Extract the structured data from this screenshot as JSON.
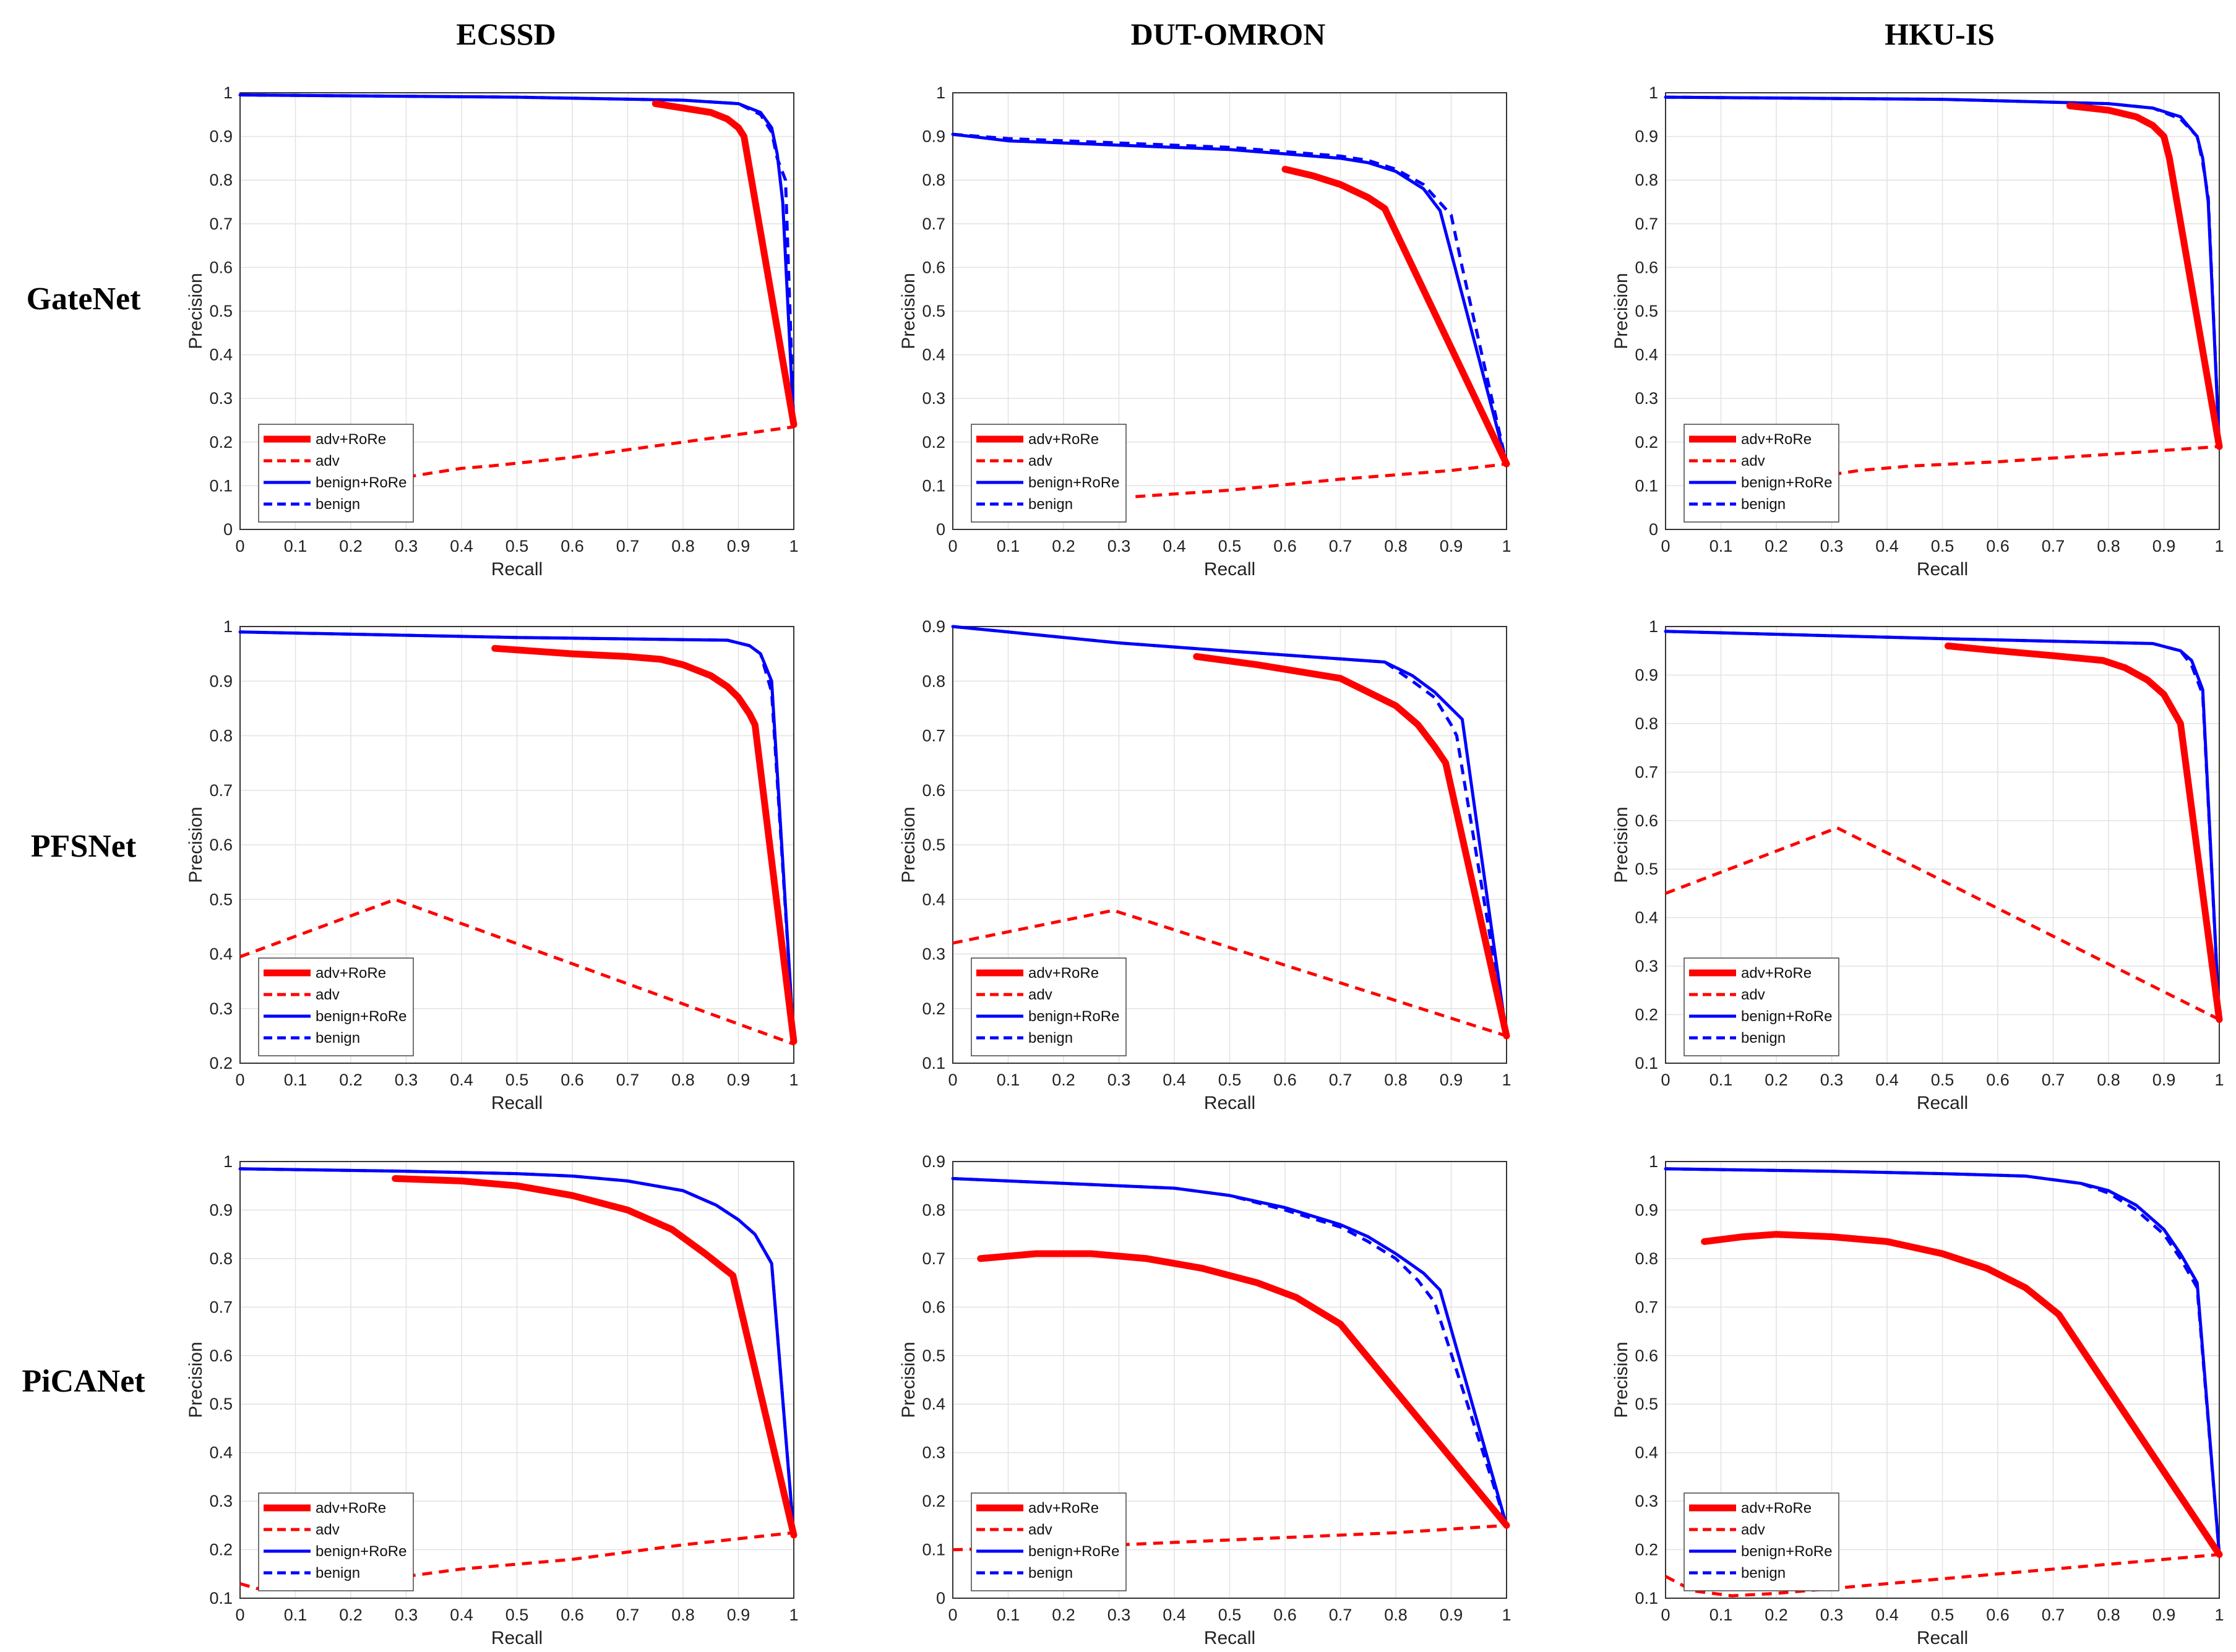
{
  "column_titles": [
    "ECSSD",
    "DUT-OMRON",
    "HKU-IS"
  ],
  "row_titles": [
    "GateNet",
    "PFSNet",
    "PiCANet"
  ],
  "axis_labels": {
    "x": "Recall",
    "y": "Precision"
  },
  "legend": [
    "adv+RoRe",
    "adv",
    "benign+RoRe",
    "benign"
  ],
  "colors": {
    "adv_rore": "#ff0000",
    "adv": "#ff0000",
    "benign_rore": "#0000ff",
    "benign": "#0000ff"
  },
  "chart_data": [
    {
      "type": "line",
      "title": "ECSSD / GateNet",
      "xlabel": "Recall",
      "ylabel": "Precision",
      "xlim": [
        0,
        1
      ],
      "ylim": [
        0,
        1
      ],
      "grid": true,
      "legend_position": "bottom-left",
      "series": [
        {
          "name": "adv+RoRe",
          "style": "thick-solid",
          "x": [
            0.75,
            0.8,
            0.85,
            0.88,
            0.9,
            0.91,
            1.0
          ],
          "y": [
            0.975,
            0.965,
            0.955,
            0.94,
            0.92,
            0.9,
            0.24
          ]
        },
        {
          "name": "adv",
          "style": "dashed",
          "x": [
            0.3,
            0.35,
            0.4,
            0.45,
            0.6,
            0.8,
            1.0
          ],
          "y": [
            0.12,
            0.13,
            0.14,
            0.145,
            0.165,
            0.2,
            0.235
          ]
        },
        {
          "name": "benign+RoRe",
          "style": "solid",
          "x": [
            0.0,
            0.5,
            0.8,
            0.9,
            0.94,
            0.96,
            0.97,
            0.98,
            1.0
          ],
          "y": [
            0.995,
            0.99,
            0.983,
            0.975,
            0.955,
            0.92,
            0.86,
            0.75,
            0.24
          ]
        },
        {
          "name": "benign",
          "style": "dashed",
          "x": [
            0.0,
            0.5,
            0.8,
            0.9,
            0.94,
            0.96,
            0.97,
            0.985,
            1.0
          ],
          "y": [
            0.995,
            0.99,
            0.983,
            0.975,
            0.95,
            0.91,
            0.85,
            0.8,
            0.24
          ]
        }
      ]
    },
    {
      "type": "line",
      "title": "DUT-OMRON / GateNet",
      "xlabel": "Recall",
      "ylabel": "Precision",
      "xlim": [
        0,
        1
      ],
      "ylim": [
        0,
        1
      ],
      "grid": true,
      "legend_position": "bottom-left",
      "series": [
        {
          "name": "adv+RoRe",
          "style": "thick-solid",
          "x": [
            0.6,
            0.65,
            0.7,
            0.75,
            0.78,
            1.0
          ],
          "y": [
            0.825,
            0.81,
            0.79,
            0.76,
            0.735,
            0.15
          ]
        },
        {
          "name": "adv",
          "style": "dashed",
          "x": [
            0.33,
            0.5,
            0.7,
            0.9,
            1.0
          ],
          "y": [
            0.075,
            0.09,
            0.115,
            0.135,
            0.15
          ]
        },
        {
          "name": "benign+RoRe",
          "style": "solid",
          "x": [
            0.0,
            0.1,
            0.3,
            0.5,
            0.6,
            0.7,
            0.75,
            0.8,
            0.85,
            0.88,
            1.0
          ],
          "y": [
            0.905,
            0.89,
            0.88,
            0.87,
            0.86,
            0.85,
            0.84,
            0.82,
            0.78,
            0.73,
            0.15
          ]
        },
        {
          "name": "benign",
          "style": "dashed",
          "x": [
            0.0,
            0.1,
            0.3,
            0.5,
            0.6,
            0.7,
            0.75,
            0.8,
            0.85,
            0.9,
            0.92,
            1.0
          ],
          "y": [
            0.905,
            0.895,
            0.885,
            0.875,
            0.865,
            0.855,
            0.845,
            0.825,
            0.79,
            0.72,
            0.6,
            0.15
          ]
        }
      ]
    },
    {
      "type": "line",
      "title": "HKU-IS / GateNet",
      "xlabel": "Recall",
      "ylabel": "Precision",
      "xlim": [
        0,
        1
      ],
      "ylim": [
        0,
        1
      ],
      "grid": true,
      "legend_position": "bottom-left",
      "series": [
        {
          "name": "adv+RoRe",
          "style": "thick-solid",
          "x": [
            0.73,
            0.8,
            0.85,
            0.88,
            0.9,
            0.91,
            1.0
          ],
          "y": [
            0.97,
            0.96,
            0.945,
            0.925,
            0.9,
            0.85,
            0.19
          ]
        },
        {
          "name": "adv",
          "style": "dashed",
          "x": [
            0.27,
            0.35,
            0.44,
            0.6,
            0.8,
            1.0
          ],
          "y": [
            0.12,
            0.135,
            0.145,
            0.155,
            0.172,
            0.19
          ]
        },
        {
          "name": "benign+RoRe",
          "style": "solid",
          "x": [
            0.0,
            0.5,
            0.8,
            0.88,
            0.93,
            0.96,
            0.97,
            0.98,
            1.0
          ],
          "y": [
            0.99,
            0.985,
            0.975,
            0.965,
            0.945,
            0.9,
            0.85,
            0.75,
            0.19
          ]
        },
        {
          "name": "benign",
          "style": "dashed",
          "x": [
            0.0,
            0.5,
            0.8,
            0.88,
            0.93,
            0.96,
            0.97,
            0.98,
            1.0
          ],
          "y": [
            0.99,
            0.985,
            0.975,
            0.965,
            0.94,
            0.9,
            0.84,
            0.76,
            0.19
          ]
        }
      ]
    },
    {
      "type": "line",
      "title": "ECSSD / PFSNet",
      "xlabel": "Recall",
      "ylabel": "Precision",
      "xlim": [
        0,
        1
      ],
      "ylim": [
        0.2,
        1
      ],
      "grid": true,
      "legend_position": "bottom-left",
      "series": [
        {
          "name": "adv+RoRe",
          "style": "thick-solid",
          "x": [
            0.46,
            0.6,
            0.7,
            0.76,
            0.8,
            0.85,
            0.88,
            0.9,
            0.92,
            0.93,
            1.0
          ],
          "y": [
            0.96,
            0.95,
            0.945,
            0.94,
            0.93,
            0.91,
            0.89,
            0.87,
            0.84,
            0.82,
            0.24
          ]
        },
        {
          "name": "adv",
          "style": "dashed",
          "x": [
            0.0,
            0.28,
            1.0
          ],
          "y": [
            0.395,
            0.5,
            0.235
          ]
        },
        {
          "name": "benign+RoRe",
          "style": "solid",
          "x": [
            0.0,
            0.5,
            0.88,
            0.92,
            0.94,
            0.96,
            1.0
          ],
          "y": [
            0.99,
            0.98,
            0.975,
            0.965,
            0.95,
            0.9,
            0.24
          ]
        },
        {
          "name": "benign",
          "style": "dashed",
          "x": [
            0.0,
            0.5,
            0.88,
            0.92,
            0.94,
            0.96,
            1.0
          ],
          "y": [
            0.99,
            0.98,
            0.975,
            0.965,
            0.95,
            0.88,
            0.24
          ]
        }
      ]
    },
    {
      "type": "line",
      "title": "DUT-OMRON / PFSNet",
      "xlabel": "Recall",
      "ylabel": "Precision",
      "xlim": [
        0,
        1
      ],
      "ylim": [
        0.1,
        0.9
      ],
      "grid": true,
      "legend_position": "bottom-left",
      "series": [
        {
          "name": "adv+RoRe",
          "style": "thick-solid",
          "x": [
            0.44,
            0.55,
            0.7,
            0.75,
            0.8,
            0.84,
            0.87,
            0.89,
            1.0
          ],
          "y": [
            0.845,
            0.83,
            0.805,
            0.78,
            0.755,
            0.72,
            0.68,
            0.65,
            0.15
          ]
        },
        {
          "name": "adv",
          "style": "dashed",
          "x": [
            0.0,
            0.29,
            1.0
          ],
          "y": [
            0.32,
            0.38,
            0.15
          ]
        },
        {
          "name": "benign+RoRe",
          "style": "solid",
          "x": [
            0.0,
            0.1,
            0.3,
            0.5,
            0.78,
            0.83,
            0.87,
            0.9,
            0.92,
            1.0
          ],
          "y": [
            0.9,
            0.89,
            0.87,
            0.855,
            0.835,
            0.81,
            0.78,
            0.75,
            0.73,
            0.15
          ]
        },
        {
          "name": "benign",
          "style": "dashed",
          "x": [
            0.0,
            0.1,
            0.3,
            0.5,
            0.78,
            0.83,
            0.87,
            0.9,
            0.91,
            1.0
          ],
          "y": [
            0.9,
            0.89,
            0.87,
            0.855,
            0.835,
            0.8,
            0.77,
            0.72,
            0.7,
            0.15
          ]
        }
      ]
    },
    {
      "type": "line",
      "title": "HKU-IS / PFSNet",
      "xlabel": "Recall",
      "ylabel": "Precision",
      "xlim": [
        0,
        1
      ],
      "ylim": [
        0.1,
        1
      ],
      "grid": true,
      "legend_position": "bottom-left",
      "series": [
        {
          "name": "adv+RoRe",
          "style": "thick-solid",
          "x": [
            0.51,
            0.6,
            0.7,
            0.79,
            0.83,
            0.87,
            0.9,
            0.92,
            0.93,
            1.0
          ],
          "y": [
            0.96,
            0.95,
            0.94,
            0.93,
            0.915,
            0.89,
            0.86,
            0.82,
            0.8,
            0.19
          ]
        },
        {
          "name": "adv",
          "style": "dashed",
          "x": [
            0.0,
            0.31,
            1.0
          ],
          "y": [
            0.45,
            0.585,
            0.19
          ]
        },
        {
          "name": "benign+RoRe",
          "style": "solid",
          "x": [
            0.0,
            0.5,
            0.88,
            0.93,
            0.95,
            0.97,
            1.0
          ],
          "y": [
            0.99,
            0.975,
            0.965,
            0.95,
            0.93,
            0.87,
            0.19
          ]
        },
        {
          "name": "benign",
          "style": "dashed",
          "x": [
            0.0,
            0.5,
            0.88,
            0.93,
            0.95,
            0.97,
            1.0
          ],
          "y": [
            0.99,
            0.975,
            0.965,
            0.95,
            0.92,
            0.86,
            0.19
          ]
        }
      ]
    },
    {
      "type": "line",
      "title": "ECSSD / PiCANet",
      "xlabel": "Recall",
      "ylabel": "Precision",
      "xlim": [
        0,
        1
      ],
      "ylim": [
        0.1,
        1
      ],
      "grid": true,
      "legend_position": "bottom-left",
      "series": [
        {
          "name": "adv+RoRe",
          "style": "thick-solid",
          "x": [
            0.28,
            0.4,
            0.5,
            0.6,
            0.7,
            0.78,
            0.84,
            0.89,
            1.0
          ],
          "y": [
            0.965,
            0.96,
            0.95,
            0.93,
            0.9,
            0.86,
            0.81,
            0.765,
            0.23
          ]
        },
        {
          "name": "adv",
          "style": "dashed",
          "x": [
            0.0,
            0.03,
            0.1,
            0.2,
            0.4,
            0.6,
            0.8,
            1.0
          ],
          "y": [
            0.13,
            0.12,
            0.12,
            0.13,
            0.16,
            0.18,
            0.21,
            0.235
          ]
        },
        {
          "name": "benign+RoRe",
          "style": "solid",
          "x": [
            0.0,
            0.3,
            0.5,
            0.6,
            0.7,
            0.8,
            0.86,
            0.9,
            0.93,
            0.96,
            1.0
          ],
          "y": [
            0.985,
            0.98,
            0.975,
            0.97,
            0.96,
            0.94,
            0.91,
            0.88,
            0.85,
            0.79,
            0.23
          ]
        },
        {
          "name": "benign",
          "style": "dashed",
          "x": [
            0.0,
            0.3,
            0.5,
            0.6,
            0.7,
            0.8,
            0.86,
            0.9,
            0.93,
            0.96,
            1.0
          ],
          "y": [
            0.985,
            0.98,
            0.975,
            0.97,
            0.96,
            0.94,
            0.91,
            0.88,
            0.85,
            0.79,
            0.23
          ]
        }
      ]
    },
    {
      "type": "line",
      "title": "DUT-OMRON / PiCANet",
      "xlabel": "Recall",
      "ylabel": "Precision",
      "xlim": [
        0,
        1
      ],
      "ylim": [
        0,
        0.9
      ],
      "grid": true,
      "legend_position": "bottom-left",
      "series": [
        {
          "name": "adv+RoRe",
          "style": "thick-solid",
          "x": [
            0.05,
            0.15,
            0.25,
            0.35,
            0.45,
            0.55,
            0.62,
            0.7,
            1.0
          ],
          "y": [
            0.7,
            0.71,
            0.71,
            0.7,
            0.68,
            0.65,
            0.62,
            0.565,
            0.15
          ]
        },
        {
          "name": "adv",
          "style": "dashed",
          "x": [
            0.0,
            0.2,
            0.4,
            0.6,
            0.8,
            1.0
          ],
          "y": [
            0.1,
            0.105,
            0.115,
            0.125,
            0.135,
            0.15
          ]
        },
        {
          "name": "benign+RoRe",
          "style": "solid",
          "x": [
            0.0,
            0.2,
            0.4,
            0.5,
            0.6,
            0.7,
            0.75,
            0.8,
            0.85,
            0.88,
            1.0
          ],
          "y": [
            0.865,
            0.855,
            0.845,
            0.83,
            0.805,
            0.77,
            0.745,
            0.71,
            0.67,
            0.635,
            0.15
          ]
        },
        {
          "name": "benign",
          "style": "dashed",
          "x": [
            0.0,
            0.2,
            0.4,
            0.5,
            0.6,
            0.7,
            0.75,
            0.8,
            0.84,
            0.87,
            1.0
          ],
          "y": [
            0.865,
            0.855,
            0.845,
            0.83,
            0.8,
            0.765,
            0.735,
            0.7,
            0.655,
            0.61,
            0.15
          ]
        }
      ]
    },
    {
      "type": "line",
      "title": "HKU-IS / PiCANet",
      "xlabel": "Recall",
      "ylabel": "Precision",
      "xlim": [
        0,
        1
      ],
      "ylim": [
        0.1,
        1
      ],
      "grid": true,
      "legend_position": "bottom-left",
      "series": [
        {
          "name": "adv+RoRe",
          "style": "thick-solid",
          "x": [
            0.07,
            0.14,
            0.2,
            0.3,
            0.4,
            0.5,
            0.58,
            0.65,
            0.71,
            1.0
          ],
          "y": [
            0.835,
            0.845,
            0.85,
            0.845,
            0.835,
            0.81,
            0.78,
            0.74,
            0.685,
            0.19
          ]
        },
        {
          "name": "adv",
          "style": "dashed",
          "x": [
            0.0,
            0.05,
            0.12,
            0.2,
            0.4,
            0.6,
            0.8,
            1.0
          ],
          "y": [
            0.145,
            0.115,
            0.105,
            0.11,
            0.13,
            0.15,
            0.17,
            0.19
          ]
        },
        {
          "name": "benign+RoRe",
          "style": "solid",
          "x": [
            0.0,
            0.3,
            0.5,
            0.65,
            0.75,
            0.8,
            0.85,
            0.9,
            0.93,
            0.95,
            0.96,
            1.0
          ],
          "y": [
            0.985,
            0.98,
            0.975,
            0.97,
            0.955,
            0.94,
            0.91,
            0.86,
            0.81,
            0.77,
            0.75,
            0.19
          ]
        },
        {
          "name": "benign",
          "style": "dashed",
          "x": [
            0.0,
            0.3,
            0.5,
            0.65,
            0.75,
            0.8,
            0.85,
            0.9,
            0.93,
            0.95,
            0.96,
            1.0
          ],
          "y": [
            0.985,
            0.98,
            0.975,
            0.97,
            0.955,
            0.935,
            0.9,
            0.85,
            0.8,
            0.76,
            0.74,
            0.19
          ]
        }
      ]
    }
  ]
}
